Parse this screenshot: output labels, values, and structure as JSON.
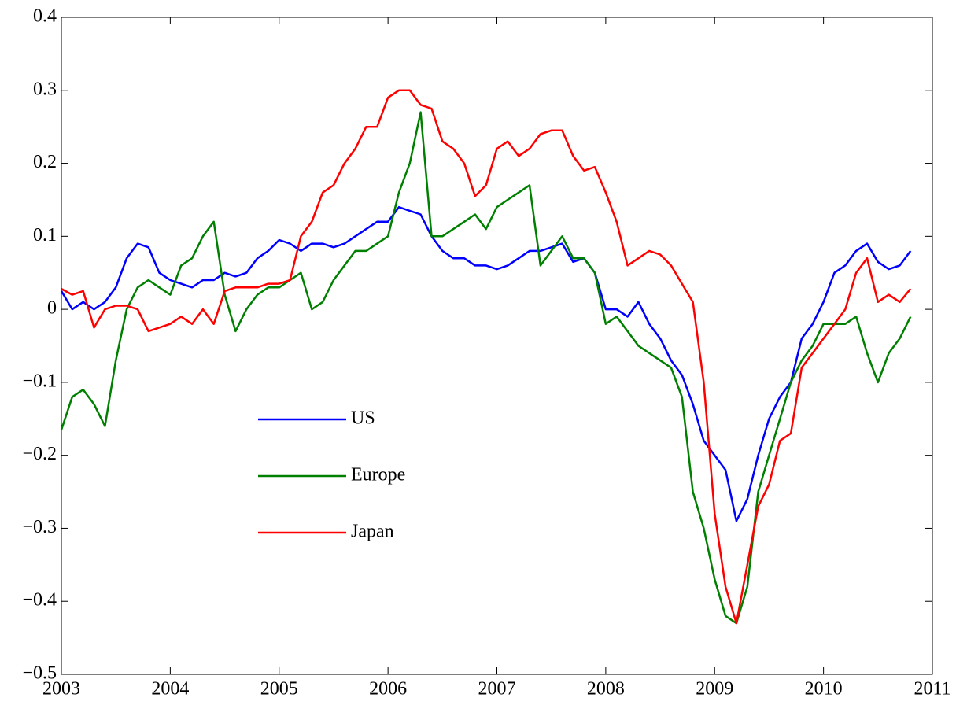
{
  "chart_data": {
    "type": "line",
    "x": [
      2003,
      2003.1,
      2003.2,
      2003.3,
      2003.4,
      2003.5,
      2003.6,
      2003.7,
      2003.8,
      2003.9,
      2004,
      2004.1,
      2004.2,
      2004.3,
      2004.4,
      2004.5,
      2004.6,
      2004.7,
      2004.8,
      2004.9,
      2005,
      2005.1,
      2005.2,
      2005.3,
      2005.4,
      2005.5,
      2005.6,
      2005.7,
      2005.8,
      2005.9,
      2006,
      2006.1,
      2006.2,
      2006.3,
      2006.4,
      2006.5,
      2006.6,
      2006.7,
      2006.8,
      2006.9,
      2007,
      2007.1,
      2007.2,
      2007.3,
      2007.4,
      2007.5,
      2007.6,
      2007.7,
      2007.8,
      2007.9,
      2008,
      2008.1,
      2008.2,
      2008.3,
      2008.4,
      2008.5,
      2008.6,
      2008.7,
      2008.8,
      2008.9,
      2009,
      2009.1,
      2009.2,
      2009.3,
      2009.4,
      2009.5,
      2009.6,
      2009.7,
      2009.8,
      2009.9,
      2010,
      2010.1,
      2010.2,
      2010.3,
      2010.4,
      2010.5,
      2010.6,
      2010.7,
      2010.8
    ],
    "series": [
      {
        "name": "US",
        "color": "#0000ff",
        "values": [
          0.025,
          0.0,
          0.01,
          0.0,
          0.01,
          0.03,
          0.07,
          0.09,
          0.085,
          0.05,
          0.04,
          0.035,
          0.03,
          0.04,
          0.04,
          0.05,
          0.045,
          0.05,
          0.07,
          0.08,
          0.095,
          0.09,
          0.08,
          0.09,
          0.09,
          0.085,
          0.09,
          0.1,
          0.11,
          0.12,
          0.12,
          0.14,
          0.135,
          0.13,
          0.1,
          0.08,
          0.07,
          0.07,
          0.06,
          0.06,
          0.055,
          0.06,
          0.07,
          0.08,
          0.08,
          0.085,
          0.09,
          0.065,
          0.07,
          0.05,
          0.0,
          0.0,
          -0.01,
          0.01,
          -0.02,
          -0.04,
          -0.07,
          -0.09,
          -0.13,
          -0.18,
          -0.2,
          -0.22,
          -0.29,
          -0.26,
          -0.2,
          -0.15,
          -0.12,
          -0.1,
          -0.04,
          -0.02,
          0.01,
          0.05,
          0.06,
          0.08,
          0.09,
          0.065,
          0.055,
          0.06,
          0.08
        ]
      },
      {
        "name": "Europe",
        "color": "#008000",
        "values": [
          -0.165,
          -0.12,
          -0.11,
          -0.13,
          -0.16,
          -0.07,
          0.0,
          0.03,
          0.04,
          0.03,
          0.02,
          0.06,
          0.07,
          0.1,
          0.12,
          0.02,
          -0.03,
          0.0,
          0.02,
          0.03,
          0.03,
          0.04,
          0.05,
          0.0,
          0.01,
          0.04,
          0.06,
          0.08,
          0.08,
          0.09,
          0.1,
          0.16,
          0.2,
          0.27,
          0.1,
          0.1,
          0.11,
          0.12,
          0.13,
          0.11,
          0.14,
          0.15,
          0.16,
          0.17,
          0.06,
          0.08,
          0.1,
          0.07,
          0.07,
          0.05,
          -0.02,
          -0.01,
          -0.03,
          -0.05,
          -0.06,
          -0.07,
          -0.08,
          -0.12,
          -0.25,
          -0.3,
          -0.37,
          -0.42,
          -0.43,
          -0.38,
          -0.25,
          -0.2,
          -0.15,
          -0.1,
          -0.07,
          -0.05,
          -0.02,
          -0.02,
          -0.02,
          -0.01,
          -0.06,
          -0.1,
          -0.06,
          -0.04,
          -0.01
        ]
      },
      {
        "name": "Japan",
        "color": "#ff0000",
        "values": [
          0.028,
          0.02,
          0.025,
          -0.025,
          0.0,
          0.005,
          0.005,
          0.0,
          -0.03,
          -0.025,
          -0.02,
          -0.01,
          -0.02,
          0.0,
          -0.02,
          0.025,
          0.03,
          0.03,
          0.03,
          0.035,
          0.035,
          0.04,
          0.1,
          0.12,
          0.16,
          0.17,
          0.2,
          0.22,
          0.25,
          0.25,
          0.29,
          0.3,
          0.3,
          0.28,
          0.275,
          0.23,
          0.22,
          0.2,
          0.155,
          0.17,
          0.22,
          0.23,
          0.21,
          0.22,
          0.24,
          0.245,
          0.245,
          0.21,
          0.19,
          0.195,
          0.16,
          0.12,
          0.06,
          0.07,
          0.08,
          0.075,
          0.06,
          0.035,
          0.01,
          -0.1,
          -0.28,
          -0.38,
          -0.43,
          -0.35,
          -0.27,
          -0.24,
          -0.18,
          -0.17,
          -0.08,
          -0.06,
          -0.04,
          -0.02,
          0.0,
          0.05,
          0.07,
          0.01,
          0.02,
          0.01,
          0.028
        ]
      }
    ],
    "xlim": [
      2003,
      2011
    ],
    "xticks": [
      2003,
      2004,
      2005,
      2006,
      2007,
      2008,
      2009,
      2010,
      2011
    ],
    "ylim": [
      -0.5,
      0.4
    ],
    "yticks": [
      {
        "value": -0.5,
        "label": "−0.5"
      },
      {
        "value": -0.4,
        "label": "−0.4"
      },
      {
        "value": -0.3,
        "label": "−0.3"
      },
      {
        "value": -0.2,
        "label": "−0.2"
      },
      {
        "value": -0.1,
        "label": "−0.1"
      },
      0,
      0.1,
      0.2,
      0.3,
      0.4
    ],
    "grid": false
  }
}
